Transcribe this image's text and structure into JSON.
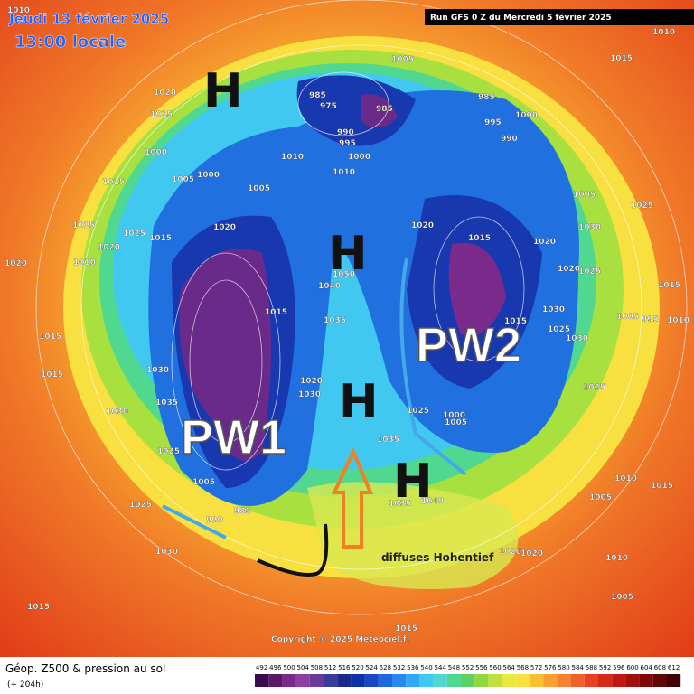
{
  "header": {
    "left_date": "Jeudi 13 février 2025",
    "left_time": "13:00 locale",
    "run": "Run GFS 0 Z du Mercredi 5 février 2025"
  },
  "annotations": {
    "h1": "H",
    "h2": "H",
    "h3": "H",
    "h4": "H",
    "pw1": "PW1",
    "pw2": "PW2",
    "note": "diffuses Hohentief"
  },
  "isobars": [
    "1010",
    "1005",
    "1015",
    "1010",
    "1020",
    "1015",
    "985",
    "975",
    "985",
    "985",
    "995",
    "1000",
    "990",
    "990",
    "995",
    "1000",
    "1010",
    "1010",
    "1000",
    "1005",
    "1000",
    "1015",
    "1005",
    "1015",
    "1020",
    "1025",
    "1015",
    "1020",
    "1020",
    "1015",
    "1020",
    "1030",
    "1025",
    "1005",
    "1010",
    "1020",
    "1020",
    "1025",
    "1050",
    "1040",
    "1035",
    "1015",
    "1015",
    "1030",
    "1025",
    "1030",
    "1015",
    "995",
    "1010",
    "1005",
    "1015",
    "1015",
    "1030",
    "1035",
    "1030",
    "1020",
    "1030",
    "1025",
    "1005",
    "1025",
    "1030",
    "985",
    "990",
    "1000",
    "1005",
    "1025",
    "1025",
    "1010",
    "1015",
    "1005",
    "1010",
    "1020",
    "1020",
    "1035",
    "1035",
    "1040",
    "1015",
    "1005",
    "1015"
  ],
  "copyright": "Copyright © 2025 Meteociel.fr",
  "footer": {
    "title": "Géop. Z500 & pression au sol",
    "subtitle": "(+ 204h)"
  },
  "colorbar": {
    "ticks": [
      492,
      496,
      500,
      504,
      508,
      512,
      516,
      520,
      524,
      528,
      532,
      536,
      540,
      544,
      548,
      552,
      556,
      560,
      564,
      568,
      572,
      576,
      580,
      584,
      588,
      592,
      596,
      600,
      604,
      608,
      612
    ],
    "colors": [
      "#3a0a4a",
      "#5a1a6a",
      "#7a2a8a",
      "#8e3ea0",
      "#6a3a9a",
      "#3a3a9a",
      "#1a2a8a",
      "#1030a8",
      "#1848c8",
      "#2068e0",
      "#2888f0",
      "#30a8f8",
      "#40c8f0",
      "#50d8d0",
      "#50d890",
      "#60d060",
      "#90d840",
      "#c0e040",
      "#e8e840",
      "#f8e040",
      "#f8c030",
      "#f8a030",
      "#f88030",
      "#f06028",
      "#e84020",
      "#d82818",
      "#c01810",
      "#a01010",
      "#800808",
      "#600808",
      "#400404"
    ]
  }
}
